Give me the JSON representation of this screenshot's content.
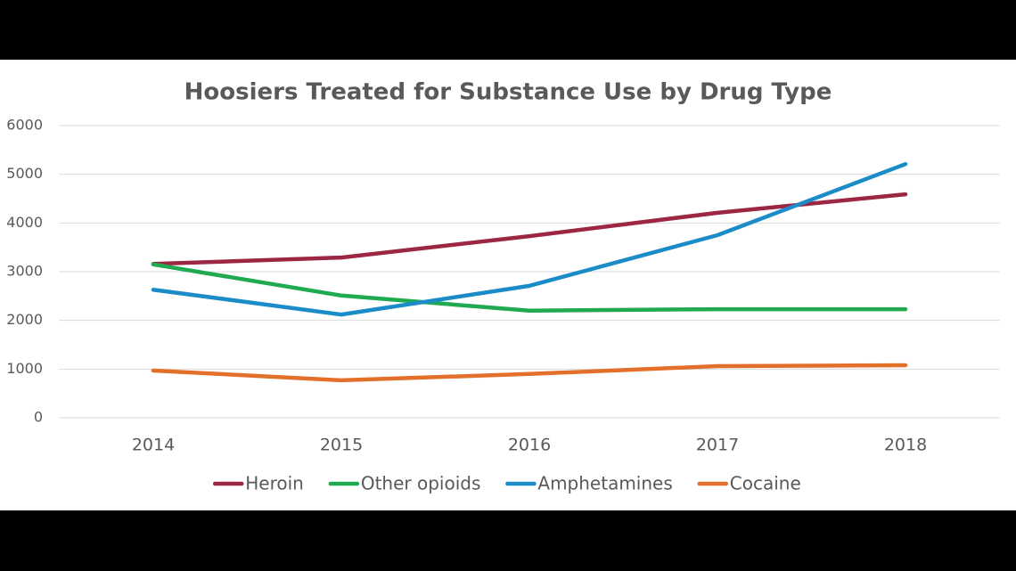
{
  "chart_data": {
    "type": "line",
    "title": "Hoosiers Treated for Substance Use by Drug Type",
    "categories": [
      "2014",
      "2015",
      "2016",
      "2017",
      "2018"
    ],
    "series": [
      {
        "name": "Heroin",
        "color": "#9b2743",
        "values": [
          3160,
          3290,
          3730,
          4210,
          4590
        ]
      },
      {
        "name": "Other opioids",
        "color": "#1faa4f",
        "values": [
          3150,
          2510,
          2200,
          2230,
          2230
        ]
      },
      {
        "name": "Amphetamines",
        "color": "#1b8cc8",
        "values": [
          2630,
          2120,
          2710,
          3750,
          5210
        ]
      },
      {
        "name": "Cocaine",
        "color": "#e2702a",
        "values": [
          970,
          770,
          900,
          1060,
          1080
        ]
      }
    ],
    "ylim": [
      0,
      6000
    ],
    "yticks": [
      0,
      1000,
      2000,
      3000,
      4000,
      5000,
      6000
    ],
    "grid": true,
    "legend": "bottom"
  }
}
